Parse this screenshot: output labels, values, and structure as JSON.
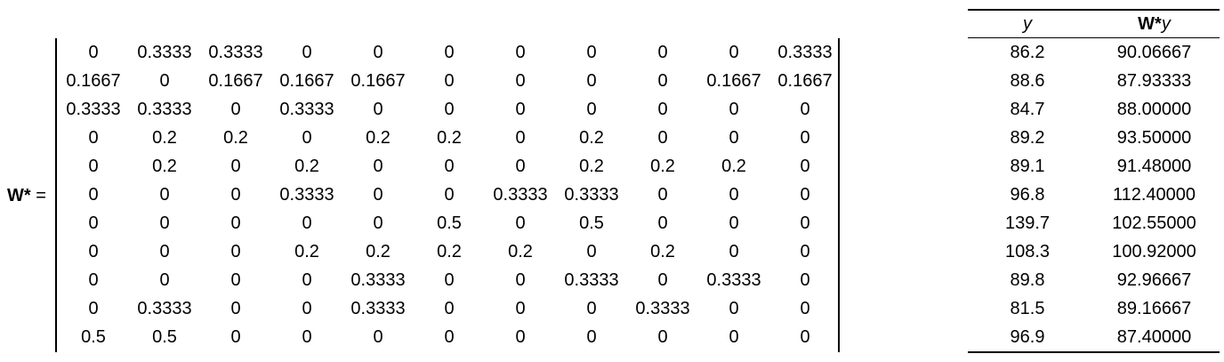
{
  "matrix_label": {
    "symbol": "W*",
    "equals": "="
  },
  "matrix": [
    [
      "0",
      "0.3333",
      "0.3333",
      "0",
      "0",
      "0",
      "0",
      "0",
      "0",
      "0",
      "0.3333"
    ],
    [
      "0.1667",
      "0",
      "0.1667",
      "0.1667",
      "0.1667",
      "0",
      "0",
      "0",
      "0",
      "0.1667",
      "0.1667"
    ],
    [
      "0.3333",
      "0.3333",
      "0",
      "0.3333",
      "0",
      "0",
      "0",
      "0",
      "0",
      "0",
      "0"
    ],
    [
      "0",
      "0.2",
      "0.2",
      "0",
      "0.2",
      "0.2",
      "0",
      "0.2",
      "0",
      "0",
      "0"
    ],
    [
      "0",
      "0.2",
      "0",
      "0.2",
      "0",
      "0",
      "0",
      "0.2",
      "0.2",
      "0.2",
      "0"
    ],
    [
      "0",
      "0",
      "0",
      "0.3333",
      "0",
      "0",
      "0.3333",
      "0.3333",
      "0",
      "0",
      "0"
    ],
    [
      "0",
      "0",
      "0",
      "0",
      "0",
      "0.5",
      "0",
      "0.5",
      "0",
      "0",
      "0"
    ],
    [
      "0",
      "0",
      "0",
      "0.2",
      "0.2",
      "0.2",
      "0.2",
      "0",
      "0.2",
      "0",
      "0"
    ],
    [
      "0",
      "0",
      "0",
      "0",
      "0.3333",
      "0",
      "0",
      "0.3333",
      "0",
      "0.3333",
      "0"
    ],
    [
      "0",
      "0.3333",
      "0",
      "0",
      "0.3333",
      "0",
      "0",
      "0",
      "0.3333",
      "0",
      "0"
    ],
    [
      "0.5",
      "0.5",
      "0",
      "0",
      "0",
      "0",
      "0",
      "0",
      "0",
      "0",
      "0"
    ]
  ],
  "vector_table": {
    "headers": {
      "y": "y",
      "wy_bold": "W*",
      "wy_italic": "y"
    },
    "y": [
      "86.2",
      "88.6",
      "84.7",
      "89.2",
      "89.1",
      "96.8",
      "139.7",
      "108.3",
      "89.8",
      "81.5",
      "96.9"
    ],
    "wy": [
      "90.06667",
      "87.93333",
      "88.00000",
      "93.50000",
      "91.48000",
      "112.40000",
      "102.55000",
      "100.92000",
      "92.96667",
      "89.16667",
      "87.40000"
    ]
  }
}
